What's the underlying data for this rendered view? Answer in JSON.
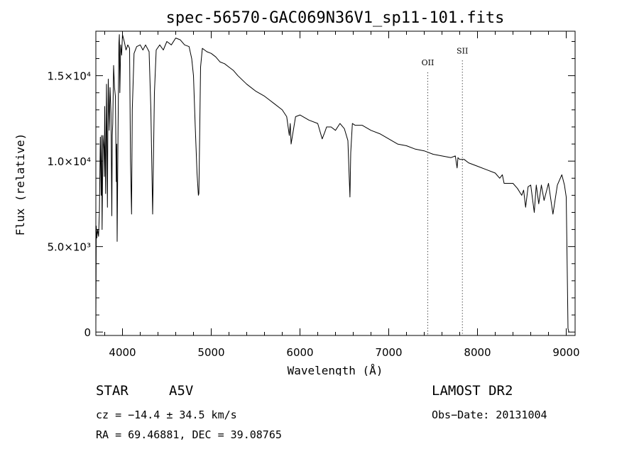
{
  "chart_data": {
    "type": "line",
    "title": "spec-56570-GAC069N36V1_sp11-101.fits",
    "xlabel": "Wavelength (Å)",
    "ylabel": "Flux (relative)",
    "xlim": [
      3700,
      9100
    ],
    "ylim": [
      -200,
      17600
    ],
    "x_ticks": [
      {
        "value": 4000,
        "label": "4000"
      },
      {
        "value": 5000,
        "label": "5000"
      },
      {
        "value": 6000,
        "label": "6000"
      },
      {
        "value": 7000,
        "label": "7000"
      },
      {
        "value": 8000,
        "label": "8000"
      },
      {
        "value": 9000,
        "label": "9000"
      }
    ],
    "y_ticks": [
      {
        "value": 0,
        "label": "0"
      },
      {
        "value": 5000,
        "label": "5.0×10³"
      },
      {
        "value": 10000,
        "label": "1.0×10⁴"
      },
      {
        "value": 15000,
        "label": "1.5×10⁴"
      }
    ],
    "annotations": [
      {
        "label": "OII",
        "x": 7440,
        "label_y": 15600
      },
      {
        "label": "SII",
        "x": 7830,
        "label_y": 16300
      }
    ],
    "series": [
      {
        "x": [
          3700,
          3705,
          3710,
          3720,
          3730,
          3740,
          3750,
          3760,
          3765,
          3770,
          3780,
          3790,
          3795,
          3800,
          3810,
          3820,
          3830,
          3835,
          3840,
          3850,
          3860,
          3870,
          3880,
          3885,
          3890,
          3900,
          3910,
          3920,
          3930,
          3935,
          3940,
          3950,
          3960,
          3965,
          3970,
          3980,
          3990,
          4000,
          4020,
          4040,
          4060,
          4080,
          4090,
          4102,
          4110,
          4130,
          4160,
          4200,
          4230,
          4260,
          4300,
          4320,
          4340,
          4360,
          4380,
          4420,
          4460,
          4500,
          4550,
          4600,
          4650,
          4700,
          4750,
          4780,
          4800,
          4820,
          4840,
          4855,
          4861,
          4867,
          4880,
          4900,
          4950,
          5000,
          5050,
          5100,
          5150,
          5200,
          5250,
          5300,
          5400,
          5500,
          5600,
          5700,
          5800,
          5850,
          5880,
          5890,
          5900,
          5950,
          6000,
          6100,
          6200,
          6250,
          6280,
          6300,
          6350,
          6400,
          6450,
          6500,
          6540,
          6555,
          6563,
          6572,
          6590,
          6620,
          6700,
          6800,
          6900,
          7000,
          7100,
          7200,
          7300,
          7400,
          7500,
          7600,
          7700,
          7750,
          7770,
          7780,
          7800,
          7850,
          7900,
          8000,
          8100,
          8200,
          8250,
          8280,
          8300,
          8350,
          8400,
          8450,
          8498,
          8520,
          8542,
          8570,
          8600,
          8640,
          8662,
          8690,
          8720,
          8750,
          8800,
          8850,
          8900,
          8950,
          8980,
          9000,
          9010,
          9020,
          9030
        ],
        "y": [
          500,
          6200,
          5500,
          6000,
          5600,
          7000,
          11400,
          8000,
          11500,
          6000,
          11500,
          10700,
          9100,
          13200,
          8100,
          14500,
          7300,
          12000,
          14800,
          11800,
          14300,
          12800,
          6800,
          11500,
          12200,
          15600,
          14300,
          13800,
          8800,
          11000,
          5300,
          12000,
          16900,
          17400,
          14000,
          16800,
          16200,
          17400,
          17000,
          16500,
          16800,
          16600,
          10000,
          6900,
          13000,
          16300,
          16700,
          16800,
          16500,
          16800,
          16400,
          13000,
          6900,
          14000,
          16500,
          16800,
          16500,
          17000,
          16800,
          17200,
          17100,
          16800,
          16700,
          16000,
          15000,
          12000,
          9300,
          8000,
          8100,
          10500,
          15500,
          16600,
          16400,
          16300,
          16100,
          15800,
          15700,
          15500,
          15300,
          15000,
          14500,
          14100,
          13800,
          13400,
          13000,
          12600,
          11500,
          12200,
          11000,
          12600,
          12700,
          12400,
          12200,
          11300,
          11700,
          12000,
          12000,
          11800,
          12200,
          11900,
          11200,
          9000,
          7900,
          10500,
          12200,
          12100,
          12100,
          11800,
          11600,
          11300,
          11000,
          10900,
          10700,
          10600,
          10400,
          10300,
          10200,
          10300,
          9600,
          10200,
          10100,
          10100,
          9900,
          9700,
          9500,
          9300,
          9000,
          9200,
          8700,
          8700,
          8700,
          8400,
          8000,
          8300,
          7300,
          8500,
          8600,
          7000,
          8600,
          7500,
          8600,
          7700,
          8700,
          6900,
          8600,
          9200,
          8600,
          7900,
          4000,
          200,
          0
        ]
      }
    ]
  },
  "info": {
    "obj_class": "STAR",
    "obj_subclass": "A5V",
    "survey": "LAMOST DR2",
    "cz": "cz = −14.4 ± 34.5 km/s",
    "obs_date": "Obs−Date: 20131004",
    "radec": "RA =  69.46881, DEC =  39.08765"
  }
}
